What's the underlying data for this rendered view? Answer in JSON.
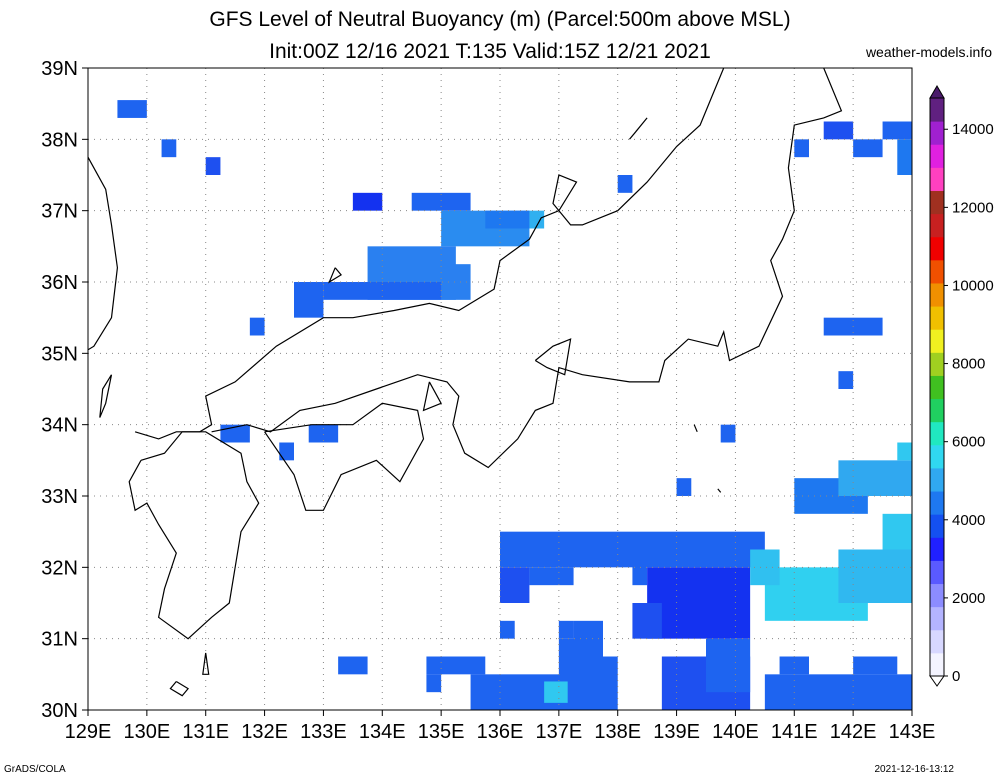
{
  "title": {
    "line1": "GFS Level of Neutral Buoyancy (m) (Parcel:500m above MSL)",
    "line2": "Init:00Z 12/16 2021 T:135 Valid:15Z 12/21 2021"
  },
  "credit": "weather-models.info",
  "footer": {
    "left": "GrADS/COLA",
    "right": "2021-12-16-13:12"
  },
  "map": {
    "lon_range": [
      129,
      143
    ],
    "lat_range": [
      30,
      39
    ],
    "lon_labels": [
      "129E",
      "130E",
      "131E",
      "132E",
      "133E",
      "134E",
      "135E",
      "136E",
      "137E",
      "138E",
      "139E",
      "140E",
      "141E",
      "142E",
      "143E"
    ],
    "lat_labels": [
      "30N",
      "31N",
      "32N",
      "33N",
      "34N",
      "35N",
      "36N",
      "37N",
      "38N",
      "39N"
    ],
    "grid": "dotted"
  },
  "colorbar": {
    "labels": [
      "0",
      "2000",
      "4000",
      "6000",
      "8000",
      "10000",
      "12000",
      "14000"
    ],
    "colors": [
      "#f4f4ff",
      "#d8d8ff",
      "#b4b4ff",
      "#8c8cff",
      "#5a5aff",
      "#2020ff",
      "#1450f0",
      "#1e78f0",
      "#30a8f0",
      "#30d8f0",
      "#20e8c0",
      "#20d060",
      "#40c020",
      "#a0d020",
      "#f0f020",
      "#f0c000",
      "#f09000",
      "#f05000",
      "#f00000",
      "#c82020",
      "#a03020",
      "#ff40c0",
      "#e020e0",
      "#a020d0",
      "#602080"
    ]
  },
  "field_cells": [
    [
      129.5,
      38.3,
      0.5,
      0.25,
      "#1e64f0"
    ],
    [
      130.25,
      37.75,
      0.25,
      0.25,
      "#1e64f0"
    ],
    [
      131.0,
      37.5,
      0.25,
      0.25,
      "#1e50f0"
    ],
    [
      131.75,
      35.25,
      0.25,
      0.25,
      "#1e64f0"
    ],
    [
      133.5,
      37.0,
      0.5,
      0.25,
      "#1432f0"
    ],
    [
      134.5,
      37.0,
      1.0,
      0.25,
      "#1e64f0"
    ],
    [
      135.0,
      36.5,
      1.5,
      0.5,
      "#2a8cf0"
    ],
    [
      135.75,
      36.75,
      0.75,
      0.25,
      "#1e78f0"
    ],
    [
      136.5,
      36.75,
      0.25,
      0.25,
      "#30b0f0"
    ],
    [
      133.75,
      35.75,
      1.5,
      0.75,
      "#2a80f0"
    ],
    [
      135.0,
      35.75,
      0.5,
      0.5,
      "#2a80f0"
    ],
    [
      132.5,
      35.5,
      0.5,
      0.5,
      "#1e64f0"
    ],
    [
      133.0,
      35.75,
      2.0,
      0.25,
      "#1e64f0"
    ],
    [
      138.0,
      37.25,
      0.25,
      0.25,
      "#1e64f0"
    ],
    [
      141.5,
      38.0,
      0.5,
      0.25,
      "#1e50f0"
    ],
    [
      142.5,
      38.0,
      0.5,
      0.25,
      "#1e64f0"
    ],
    [
      142.0,
      37.75,
      0.5,
      0.25,
      "#1e64f0"
    ],
    [
      142.75,
      37.5,
      0.25,
      0.5,
      "#1e78f0"
    ],
    [
      141.0,
      37.75,
      0.25,
      0.25,
      "#1e64f0"
    ],
    [
      141.5,
      35.25,
      1.0,
      0.25,
      "#1e64f0"
    ],
    [
      141.75,
      34.5,
      0.25,
      0.25,
      "#1e64f0"
    ],
    [
      131.25,
      33.75,
      0.5,
      0.25,
      "#1e64f0"
    ],
    [
      132.25,
      33.5,
      0.25,
      0.25,
      "#1e64f0"
    ],
    [
      132.75,
      33.75,
      0.5,
      0.25,
      "#1e64f0"
    ],
    [
      139.75,
      33.75,
      0.25,
      0.25,
      "#1e64f0"
    ],
    [
      139.0,
      33.0,
      0.25,
      0.25,
      "#1e64f0"
    ],
    [
      141.0,
      32.75,
      1.25,
      0.5,
      "#1e78f0"
    ],
    [
      141.75,
      33.0,
      1.25,
      0.5,
      "#30a8f0"
    ],
    [
      142.75,
      33.5,
      0.25,
      0.25,
      "#30c8f0"
    ],
    [
      142.5,
      32.25,
      0.5,
      0.5,
      "#30c8f0"
    ],
    [
      136.0,
      32.0,
      4.5,
      0.5,
      "#1e64f0"
    ],
    [
      136.0,
      31.5,
      0.5,
      0.5,
      "#1e50f0"
    ],
    [
      136.5,
      31.75,
      0.75,
      0.25,
      "#1e64f0"
    ],
    [
      138.25,
      31.75,
      0.25,
      0.5,
      "#1e64f0"
    ],
    [
      138.5,
      31.0,
      1.75,
      1.0,
      "#1432f0"
    ],
    [
      139.5,
      31.0,
      0.5,
      0.75,
      "#1432f0"
    ],
    [
      138.25,
      31.0,
      0.5,
      0.5,
      "#1e50f0"
    ],
    [
      140.5,
      31.25,
      1.75,
      0.75,
      "#30d0f0"
    ],
    [
      141.75,
      31.5,
      1.25,
      0.75,
      "#30b8f0"
    ],
    [
      140.25,
      31.75,
      0.5,
      0.5,
      "#30c0f0"
    ],
    [
      136.0,
      31.0,
      0.25,
      0.25,
      "#1e64f0"
    ],
    [
      137.25,
      30.75,
      0.5,
      0.5,
      "#1e64f0"
    ],
    [
      137.0,
      31.0,
      0.25,
      0.25,
      "#1e64f0"
    ],
    [
      133.25,
      30.5,
      0.5,
      0.25,
      "#1e64f0"
    ],
    [
      134.75,
      30.5,
      1.0,
      0.25,
      "#1e64f0"
    ],
    [
      134.75,
      30.25,
      0.25,
      0.25,
      "#1e64f0"
    ],
    [
      135.5,
      30.0,
      2.25,
      0.5,
      "#1e64f0"
    ],
    [
      137.0,
      30.0,
      0.75,
      1.0,
      "#1e64f0"
    ],
    [
      136.75,
      30.1,
      0.4,
      0.3,
      "#30c8f0"
    ],
    [
      137.75,
      30.0,
      0.25,
      0.75,
      "#1e64f0"
    ],
    [
      138.75,
      30.0,
      1.5,
      0.75,
      "#1e50f0"
    ],
    [
      139.5,
      30.25,
      0.75,
      0.75,
      "#1e64f0"
    ],
    [
      140.5,
      30.0,
      2.5,
      0.5,
      "#1e64f0"
    ],
    [
      140.75,
      30.5,
      0.5,
      0.25,
      "#1e64f0"
    ],
    [
      142.0,
      30.5,
      0.75,
      0.25,
      "#1e64f0"
    ]
  ],
  "coast_lines": [
    [
      [
        129,
        37.75
      ],
      [
        129.3,
        37.3
      ],
      [
        129.4,
        36.8
      ],
      [
        129.5,
        36.2
      ],
      [
        129.4,
        35.5
      ],
      [
        129.1,
        35.1
      ],
      [
        129,
        35.05
      ]
    ],
    [
      [
        129.4,
        34.7
      ],
      [
        129.3,
        34.3
      ],
      [
        129.2,
        34.1
      ],
      [
        129.25,
        34.5
      ],
      [
        129.4,
        34.7
      ]
    ],
    [
      [
        129.8,
        33.9
      ],
      [
        130.2,
        33.8
      ],
      [
        130.5,
        33.9
      ],
      [
        130.9,
        33.9
      ],
      [
        131.1,
        34.0
      ],
      [
        131.0,
        34.4
      ],
      [
        131.5,
        34.6
      ],
      [
        132.2,
        35.1
      ],
      [
        133.0,
        35.5
      ],
      [
        133.5,
        35.5
      ],
      [
        134.2,
        35.6
      ],
      [
        134.8,
        35.7
      ],
      [
        135.3,
        35.6
      ],
      [
        135.9,
        35.9
      ],
      [
        136.0,
        36.3
      ],
      [
        136.5,
        36.6
      ],
      [
        136.7,
        36.9
      ],
      [
        137.0,
        37.0
      ],
      [
        137.3,
        37.4
      ],
      [
        137.0,
        37.5
      ],
      [
        136.9,
        37.1
      ],
      [
        137.2,
        36.8
      ],
      [
        137.4,
        36.8
      ],
      [
        138.0,
        37.0
      ],
      [
        138.5,
        37.4
      ],
      [
        139.0,
        37.9
      ],
      [
        139.4,
        38.2
      ],
      [
        139.6,
        38.6
      ],
      [
        139.8,
        39.0
      ]
    ],
    [
      [
        141.5,
        39.0
      ],
      [
        141.8,
        38.4
      ],
      [
        141.5,
        38.3
      ],
      [
        141.0,
        38.2
      ],
      [
        140.9,
        37.6
      ],
      [
        141.0,
        37.0
      ],
      [
        140.8,
        36.6
      ],
      [
        140.6,
        36.3
      ],
      [
        140.8,
        35.8
      ],
      [
        140.4,
        35.1
      ],
      [
        139.9,
        34.9
      ],
      [
        139.8,
        35.3
      ],
      [
        139.7,
        35.1
      ],
      [
        139.2,
        35.2
      ],
      [
        138.8,
        34.9
      ],
      [
        138.7,
        34.6
      ],
      [
        138.2,
        34.6
      ],
      [
        137.4,
        34.7
      ],
      [
        137.0,
        34.8
      ],
      [
        136.9,
        34.3
      ],
      [
        136.6,
        34.2
      ],
      [
        136.3,
        33.8
      ],
      [
        135.8,
        33.4
      ],
      [
        135.4,
        33.6
      ],
      [
        135.2,
        34.0
      ],
      [
        135.3,
        34.4
      ],
      [
        135.1,
        34.6
      ],
      [
        134.6,
        34.7
      ],
      [
        133.9,
        34.5
      ],
      [
        133.2,
        34.3
      ],
      [
        132.6,
        34.2
      ],
      [
        132.1,
        33.9
      ],
      [
        131.7,
        34.0
      ],
      [
        131.1,
        33.9
      ]
    ],
    [
      [
        129.9,
        33.5
      ],
      [
        130.3,
        33.6
      ],
      [
        130.6,
        33.9
      ],
      [
        131.0,
        33.9
      ],
      [
        131.6,
        33.6
      ],
      [
        131.7,
        33.2
      ],
      [
        131.9,
        32.9
      ],
      [
        131.6,
        32.5
      ],
      [
        131.4,
        31.5
      ],
      [
        131.1,
        31.3
      ],
      [
        130.7,
        31.0
      ],
      [
        130.2,
        31.3
      ],
      [
        130.3,
        31.7
      ],
      [
        130.5,
        32.2
      ],
      [
        130.2,
        32.6
      ],
      [
        130.0,
        32.9
      ],
      [
        129.8,
        32.8
      ],
      [
        129.7,
        33.2
      ],
      [
        129.9,
        33.5
      ]
    ],
    [
      [
        132.0,
        33.9
      ],
      [
        132.5,
        33.3
      ],
      [
        132.7,
        32.8
      ],
      [
        133.0,
        32.8
      ],
      [
        133.3,
        33.3
      ],
      [
        133.9,
        33.5
      ],
      [
        134.3,
        33.2
      ],
      [
        134.7,
        33.8
      ],
      [
        134.6,
        34.2
      ],
      [
        134.0,
        34.3
      ],
      [
        133.5,
        34.0
      ],
      [
        132.8,
        34.0
      ],
      [
        132.0,
        33.9
      ]
    ],
    [
      [
        134.8,
        34.6
      ],
      [
        135.0,
        34.3
      ],
      [
        134.7,
        34.2
      ],
      [
        134.8,
        34.6
      ]
    ],
    [
      [
        136.6,
        34.9
      ],
      [
        136.9,
        35.1
      ],
      [
        137.2,
        35.2
      ],
      [
        137.1,
        34.7
      ],
      [
        136.8,
        34.8
      ],
      [
        136.6,
        34.9
      ]
    ],
    [
      [
        130.5,
        30.4
      ],
      [
        130.7,
        30.3
      ],
      [
        130.6,
        30.2
      ],
      [
        130.4,
        30.3
      ],
      [
        130.5,
        30.4
      ]
    ],
    [
      [
        131.0,
        30.8
      ],
      [
        131.05,
        30.5
      ],
      [
        130.95,
        30.5
      ],
      [
        131.0,
        30.8
      ]
    ],
    [
      [
        138.2,
        38.0
      ],
      [
        138.5,
        38.3
      ],
      [
        138.3,
        38.1
      ],
      [
        138.2,
        38.0
      ]
    ],
    [
      [
        133.2,
        36.2
      ],
      [
        133.3,
        36.1
      ],
      [
        133.1,
        36.0
      ],
      [
        133.2,
        36.2
      ]
    ],
    [
      [
        139.3,
        34.0
      ],
      [
        139.35,
        33.9
      ]
    ],
    [
      [
        139.7,
        33.1
      ],
      [
        139.75,
        33.05
      ]
    ]
  ]
}
